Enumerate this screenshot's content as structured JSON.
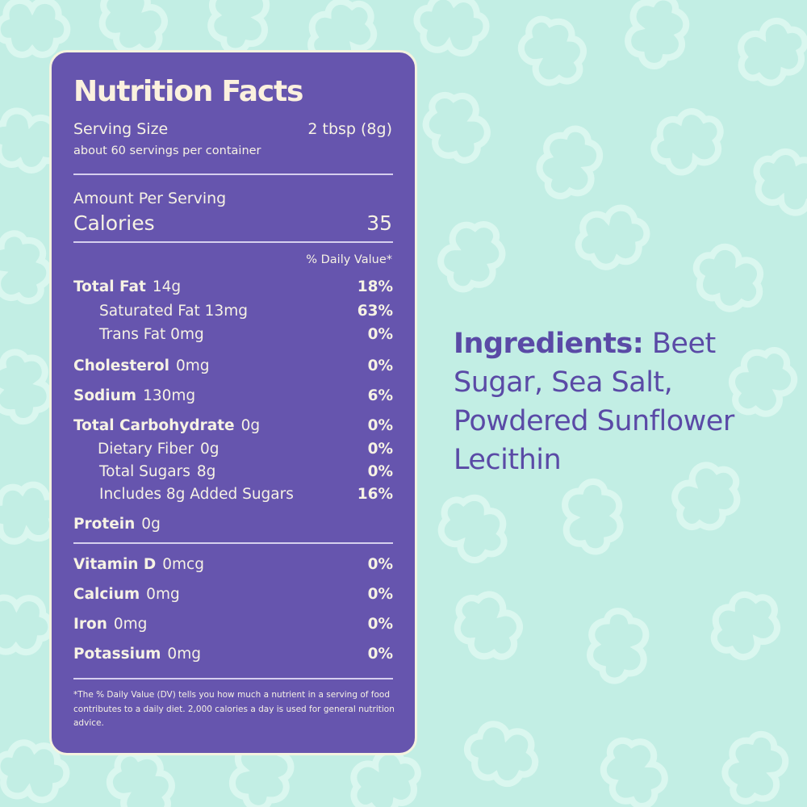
{
  "colors": {
    "background": "#c2eee4",
    "panel": "#6655ae",
    "panel_text": "#f6f2e4",
    "accent_text": "#5a4aa6"
  },
  "facts": {
    "title": "Nutrition Facts",
    "serving_size_label": "Serving Size",
    "serving_size_value": "2 tbsp (8g)",
    "servings_per_container": "about 60 servings per container",
    "amount_per_serving": "Amount Per Serving",
    "calories_label": "Calories",
    "calories_value": "35",
    "daily_value_header": "% Daily Value*",
    "nutrients": [
      {
        "name": "Total Fat",
        "amount": "14g",
        "dv": "18%"
      },
      {
        "name": "Saturated Fat 13mg",
        "amount": "",
        "dv": "63%"
      },
      {
        "name": "Trans Fat 0mg",
        "amount": "",
        "dv": "0%"
      },
      {
        "name": "Cholesterol",
        "amount": "0mg",
        "dv": "0%"
      },
      {
        "name": "Sodium",
        "amount": "130mg",
        "dv": "6%"
      },
      {
        "name": "Total Carbohydrate",
        "amount": "0g",
        "dv": "0%"
      },
      {
        "name": "Dietary Fiber",
        "amount": "0g",
        "dv": "0%"
      },
      {
        "name": "Total Sugars",
        "amount": "8g",
        "dv": "0%"
      },
      {
        "name": "Includes 8g Added Sugars",
        "amount": "",
        "dv": "16%"
      },
      {
        "name": "Protein",
        "amount": "0g",
        "dv": ""
      },
      {
        "name": "Vitamin D",
        "amount": "0mcg",
        "dv": "0%"
      },
      {
        "name": "Calcium",
        "amount": "0mg",
        "dv": "0%"
      },
      {
        "name": "Iron",
        "amount": "0mg",
        "dv": "0%"
      },
      {
        "name": "Potassium",
        "amount": "0mg",
        "dv": "0%"
      }
    ],
    "footnote": "*The % Daily Value (DV) tells you how much a nutrient in a serving of food contributes to a daily diet. 2,000 calories a day is used for general nutrition advice."
  },
  "ingredients": {
    "label": "Ingredients:",
    "text": "Beet Sugar, Sea Salt, Powdered Sunflower Lecithin"
  }
}
